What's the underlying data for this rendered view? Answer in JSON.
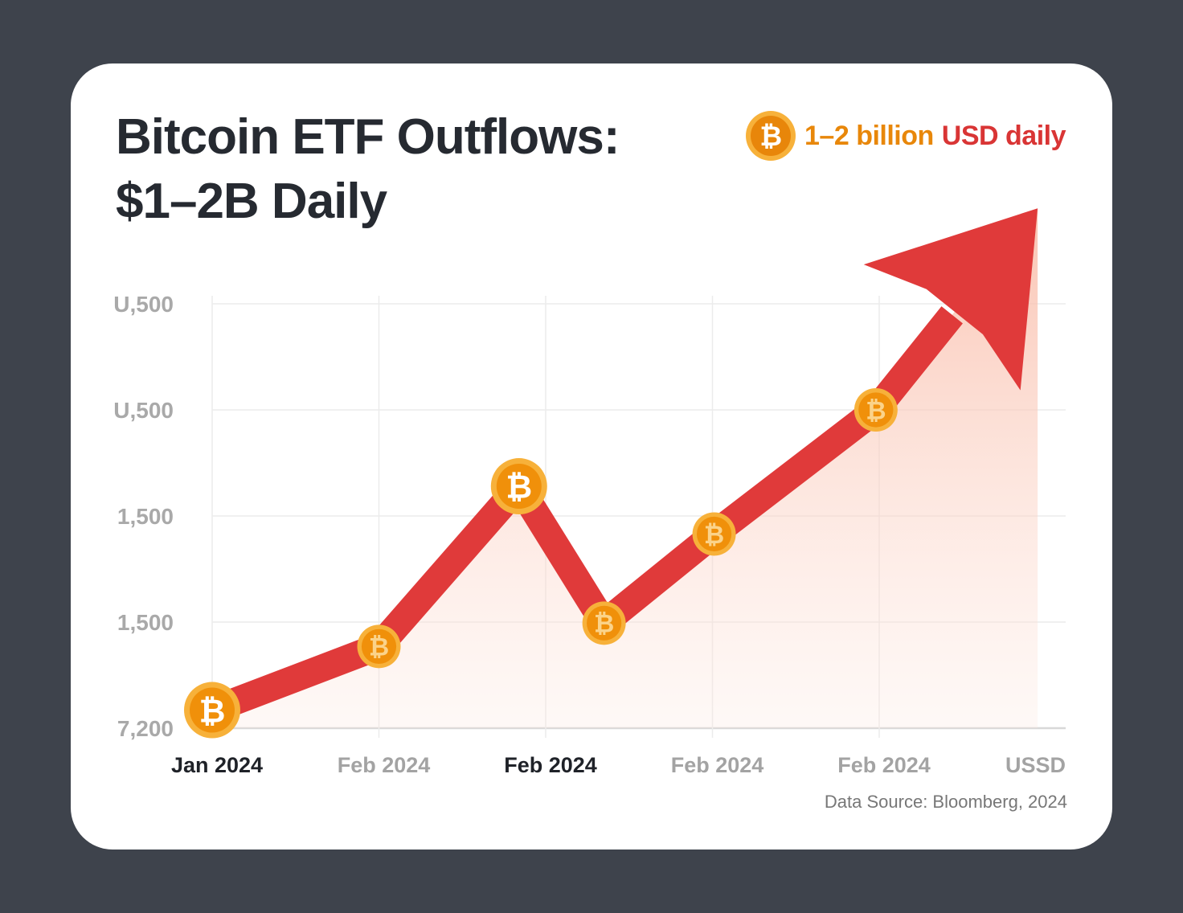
{
  "title_line1": "Bitcoin ETF Outflows:",
  "title_line2": "$1–2B Daily",
  "legend": {
    "icon": "bitcoin-coin-icon",
    "part1": "1–2 billion",
    "part2": "USD daily"
  },
  "source": "Data Source: Bloomberg, 2024",
  "colors": {
    "background": "#3e434c",
    "arrow": "#e03a3a",
    "coin": "#f0900a",
    "coin_rim": "#f7b13a",
    "area": "#f9b9a5",
    "title": "#262a31"
  },
  "chart_data": {
    "type": "line",
    "title": "Bitcoin ETF Outflows: $1–2B Daily",
    "xlabel": "",
    "ylabel": "",
    "x_tick_labels": [
      "Jan 2024",
      "Feb 2024",
      "Feb 2024",
      "Feb 2024",
      "Feb 2024",
      "USSD"
    ],
    "x_tick_bold": [
      true,
      false,
      true,
      false,
      false,
      false
    ],
    "y_tick_labels": [
      "7,200",
      "1,500",
      "1,500",
      "U,500",
      "U,500"
    ],
    "grid": true,
    "marker": "bitcoin-coin-icon",
    "ending": "arrow",
    "area_fill": true,
    "points": [
      {
        "x": 0,
        "y": 0.17,
        "large": true
      },
      {
        "x": 1,
        "y": 0.77,
        "large": false
      },
      {
        "x": 1.84,
        "y": 2.28,
        "large": true
      },
      {
        "x": 2.35,
        "y": 0.99,
        "large": false
      },
      {
        "x": 3.01,
        "y": 1.83,
        "large": false
      },
      {
        "x": 3.98,
        "y": 3.0,
        "large": false
      }
    ],
    "arrow_tip": {
      "x": 4.95,
      "y": 4.9
    }
  }
}
